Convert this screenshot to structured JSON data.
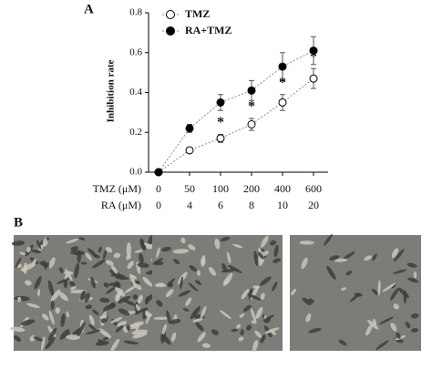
{
  "chart_data": {
    "type": "line",
    "panel_label": "A",
    "y_label": "Inhibition rate",
    "category_label": "TMZ (μM)",
    "categories": [
      "0",
      "50",
      "100",
      "200",
      "400",
      "600"
    ],
    "category_label_2": "RA (μM)",
    "categories_2": [
      "0",
      "4",
      "6",
      "8",
      "10",
      "20"
    ],
    "ylim": [
      0,
      0.8
    ],
    "yticks": [
      {
        "value": 0,
        "label": "0.0"
      },
      0.2,
      0.4,
      0.6,
      0.8
    ],
    "series": [
      {
        "name": "TMZ",
        "color": "#ffffff",
        "values": [
          0,
          0.11,
          0.17,
          0.24,
          0.35,
          0.47
        ],
        "errors": [
          0,
          0.01,
          0.02,
          0.03,
          0.04,
          0.05
        ]
      },
      {
        "name": "RA+TMZ",
        "color": "#000000",
        "values": [
          0,
          0.22,
          0.35,
          0.41,
          0.53,
          0.61
        ],
        "errors": [
          0,
          0.02,
          0.04,
          0.05,
          0.07,
          0.07
        ]
      }
    ],
    "annotations": [
      {
        "text": "*",
        "category": 2
      },
      {
        "text": "*",
        "category": 3
      },
      {
        "text": "*",
        "category": 4
      },
      {
        "text": "*",
        "category": 5
      }
    ]
  },
  "panel_b": {
    "label": "B"
  }
}
